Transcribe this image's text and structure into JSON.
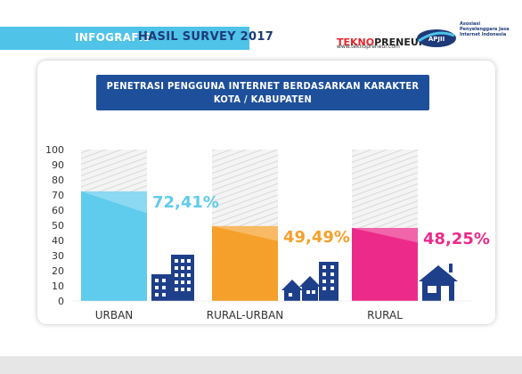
{
  "header": {
    "left_label": "INFOGRAFIS",
    "right_label": "HASIL SURVEY 2017"
  },
  "logos": {
    "tekno_part1": "TEKNO",
    "tekno_part2": "PRENEUR",
    "tekno_url": "www.teknopreneur.com",
    "apjii_mark": "APJII",
    "apjii_text": "Asosiasi Penyelenggara Jasa Internet Indonesia"
  },
  "colors": {
    "header_band": "#4fc3e8",
    "title_box": "#1e4f9a",
    "building": "#1e3f8a",
    "bar_urban": "#5fcbed",
    "bar_rural_urban": "#f5a02a",
    "bar_rural": "#ec2a8a"
  },
  "chart_data": {
    "type": "bar",
    "title_lines": [
      "PENETRASI PENGGUNA INTERNET BERDASARKAN KARAKTER",
      "KOTA / KABUPATEN"
    ],
    "categories": [
      "URBAN",
      "RURAL-URBAN",
      "RURAL"
    ],
    "values": [
      72.41,
      49.49,
      48.25
    ],
    "value_labels": [
      "72,41%",
      "49,49%",
      "48,25%"
    ],
    "bar_colors": [
      "#5fcbed",
      "#f5a02a",
      "#ec2a8a"
    ],
    "label_colors": [
      "#5fcbed",
      "#f5a02a",
      "#ec2a8a"
    ],
    "ylim": [
      0,
      100
    ],
    "yticks": [
      0,
      10,
      20,
      30,
      40,
      50,
      60,
      70,
      80,
      90,
      100
    ],
    "background_bars_to": 100,
    "grid": false,
    "xlabel": "",
    "ylabel": ""
  }
}
